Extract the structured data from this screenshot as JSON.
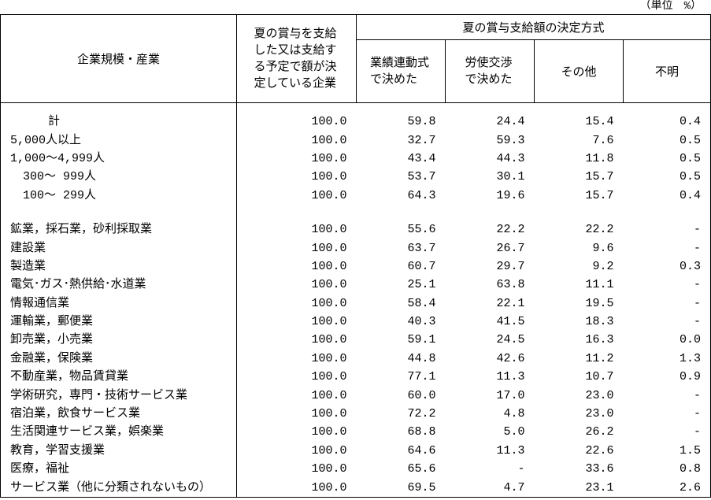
{
  "unit": "（単位　%）",
  "header": {
    "row_label": "企業規模・産業",
    "paid": "夏の賞与を支給した又は支給する予定で額が決定している企業",
    "method_group": "夏の賞与支給額の決定方式",
    "methods": [
      "業績連動式で決めた",
      "労使交渉で決めた",
      "その他",
      "不明"
    ]
  },
  "size_rows": [
    [
      "計",
      "100.0",
      "59.8",
      "24.4",
      "15.4",
      "0.4"
    ],
    [
      "5,000人以上",
      "100.0",
      "32.7",
      "59.3",
      "7.6",
      "0.5"
    ],
    [
      "1,000～4,999人",
      "100.0",
      "43.4",
      "44.3",
      "11.8",
      "0.5"
    ],
    [
      "300～ 999人",
      "100.0",
      "53.7",
      "30.1",
      "15.7",
      "0.5"
    ],
    [
      "100～ 299人",
      "100.0",
      "64.3",
      "19.6",
      "15.7",
      "0.4"
    ]
  ],
  "industry_rows": [
    [
      "鉱業，採石業，砂利採取業",
      "100.0",
      "55.6",
      "22.2",
      "22.2",
      "-"
    ],
    [
      "建設業",
      "100.0",
      "63.7",
      "26.7",
      "9.6",
      "-"
    ],
    [
      "製造業",
      "100.0",
      "60.7",
      "29.7",
      "9.2",
      "0.3"
    ],
    [
      "電気･ガス･熱供給･水道業",
      "100.0",
      "25.1",
      "63.8",
      "11.1",
      "-"
    ],
    [
      "情報通信業",
      "100.0",
      "58.4",
      "22.1",
      "19.5",
      "-"
    ],
    [
      "運輸業，郵便業",
      "100.0",
      "40.3",
      "41.5",
      "18.3",
      "-"
    ],
    [
      "卸売業，小売業",
      "100.0",
      "59.1",
      "24.5",
      "16.3",
      "0.0"
    ],
    [
      "金融業，保険業",
      "100.0",
      "44.8",
      "42.6",
      "11.2",
      "1.3"
    ],
    [
      "不動産業，物品賃貸業",
      "100.0",
      "77.1",
      "11.3",
      "10.7",
      "0.9"
    ],
    [
      "学術研究，専門・技術サービス業",
      "100.0",
      "60.0",
      "17.0",
      "23.0",
      "-"
    ],
    [
      "宿泊業，飲食サービス業",
      "100.0",
      "72.2",
      "4.8",
      "23.0",
      "-"
    ],
    [
      "生活関連サービス業，娯楽業",
      "100.0",
      "68.8",
      "5.0",
      "26.2",
      "-"
    ],
    [
      "教育，学習支援業",
      "100.0",
      "64.6",
      "11.3",
      "22.6",
      "1.5"
    ],
    [
      "医療，福祉",
      "100.0",
      "65.6",
      "-",
      "33.6",
      "0.8"
    ],
    [
      "サービス業（他に分類されないもの）",
      "100.0",
      "69.5",
      "4.7",
      "23.1",
      "2.6"
    ]
  ]
}
